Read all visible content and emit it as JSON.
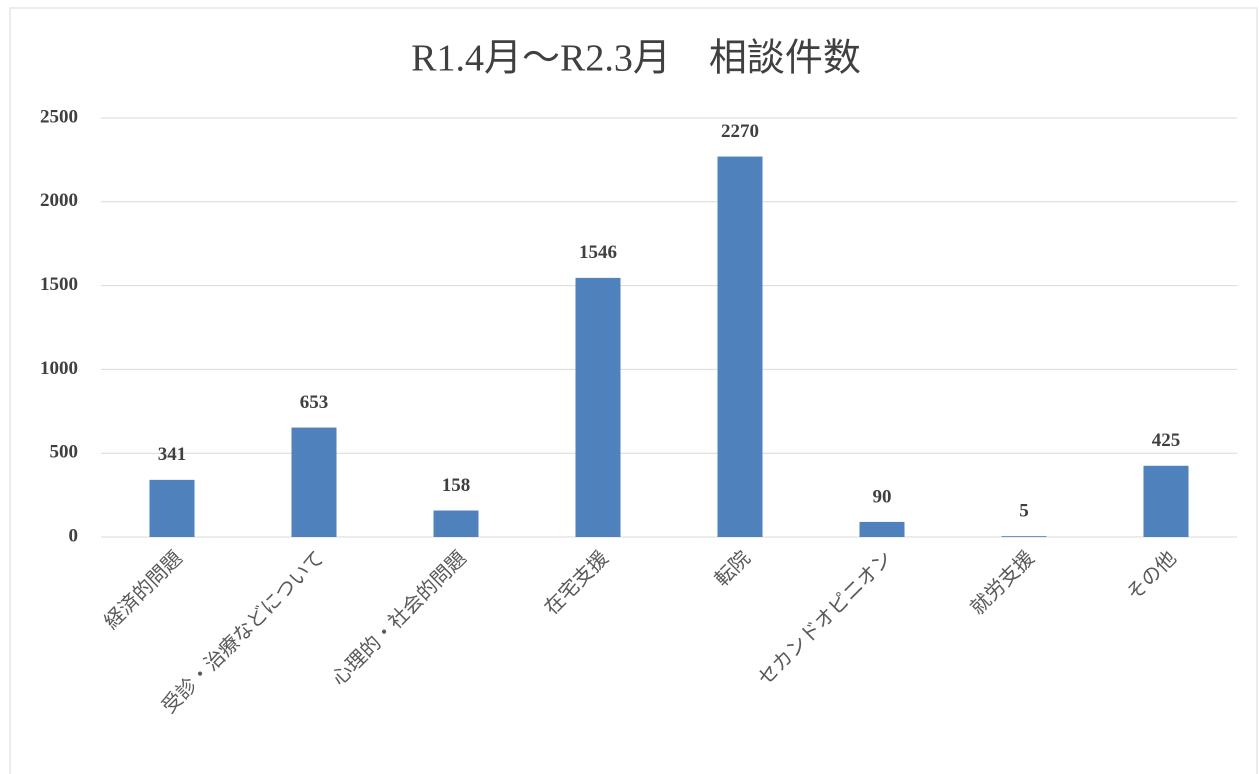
{
  "chart_data": {
    "type": "bar",
    "title": "R1.4月～R2.3月　相談件数",
    "categories": [
      "経済的問題",
      "受診・治療などについて",
      "心理的・社会的問題",
      "在宅支援",
      "転院",
      "セカンドオピニオン",
      "就労支援",
      "その他"
    ],
    "values": [
      341,
      653,
      158,
      1546,
      2270,
      90,
      5,
      425
    ],
    "color": "#4f81bd",
    "ylim": [
      0,
      2500
    ],
    "yticks": [
      0,
      500,
      1000,
      1500,
      2000,
      2500
    ],
    "grid": true,
    "data_labels": true
  }
}
